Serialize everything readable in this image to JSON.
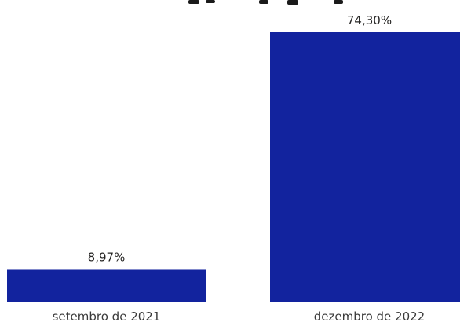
{
  "chart_data": {
    "type": "bar",
    "categories": [
      "setembro de 2021",
      "dezembro de 2022"
    ],
    "values": [
      8.97,
      74.3
    ],
    "value_labels": [
      "8,97%",
      "74,30%"
    ],
    "ylim": [
      0,
      74.3
    ],
    "grid": false,
    "legend": "none",
    "title": "",
    "xlabel": "",
    "ylabel": "",
    "colors": {
      "bar": "#12239E",
      "text": "#252423"
    }
  }
}
